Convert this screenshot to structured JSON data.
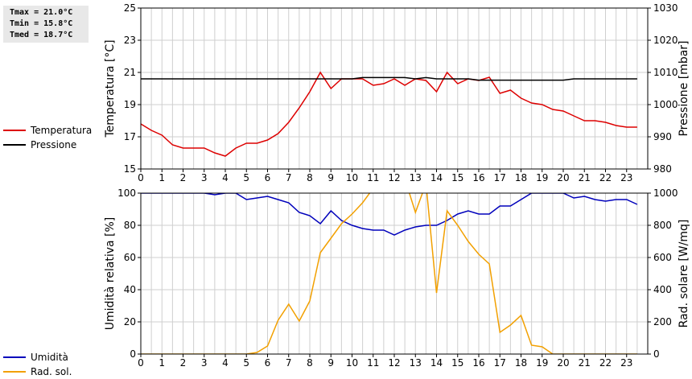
{
  "stats": [
    "Tmax = 21.0°C",
    "Tmin = 15.8°C",
    "Tmed = 18.7°C"
  ],
  "colors": {
    "temperature": "#dd0000",
    "pressure": "#000000",
    "humidity": "#0000bb",
    "solar": "#f2a000",
    "grid": "#cfcfcf"
  },
  "legend_top": [
    {
      "label": "Temperatura",
      "color": "#dd0000"
    },
    {
      "label": "Pressione",
      "color": "#000000"
    }
  ],
  "legend_bottom": [
    {
      "label": "Umidità",
      "color": "#0000bb"
    },
    {
      "label": "Rad. sol.",
      "color": "#f2a000"
    }
  ],
  "chart_data": [
    {
      "type": "line",
      "xlabel": "",
      "x_ticks": [
        "0",
        "1",
        "2",
        "3",
        "4",
        "5",
        "6",
        "7",
        "8",
        "9",
        "10",
        "11",
        "12",
        "13",
        "14",
        "15",
        "16",
        "17",
        "18",
        "19",
        "20",
        "21",
        "22",
        "23"
      ],
      "xlim": [
        0,
        24
      ],
      "ylabel": "Temperatura [°C]",
      "ylim": [
        15,
        25
      ],
      "y_ticks": [
        "15",
        "17",
        "19",
        "21",
        "23",
        "25"
      ],
      "y2label": "Pressione [mbar]",
      "y2lim": [
        980,
        1030
      ],
      "y2_ticks": [
        "980",
        "990",
        "1000",
        "1010",
        "1020",
        "1030"
      ],
      "grid": true,
      "legend": "left",
      "series": [
        {
          "name": "Temperatura",
          "axis": "left",
          "x": [
            0,
            0.5,
            1,
            1.5,
            2,
            2.5,
            3,
            3.5,
            4,
            4.5,
            5,
            5.5,
            6,
            6.5,
            7,
            7.5,
            8,
            8.5,
            9,
            9.5,
            10,
            10.5,
            11,
            11.5,
            12,
            12.5,
            13,
            13.5,
            14,
            14.5,
            15,
            15.5,
            16,
            16.5,
            17,
            17.5,
            18,
            18.5,
            19,
            19.5,
            20,
            20.5,
            21,
            21.5,
            22,
            22.5,
            23,
            23.5
          ],
          "y": [
            17.8,
            17.4,
            17.1,
            16.5,
            16.3,
            16.3,
            16.3,
            16.0,
            15.8,
            16.3,
            16.6,
            16.6,
            16.8,
            17.2,
            17.9,
            18.8,
            19.8,
            21.0,
            20.0,
            20.6,
            20.6,
            20.6,
            20.2,
            20.3,
            20.6,
            20.2,
            20.6,
            20.5,
            19.8,
            21.0,
            20.3,
            20.6,
            20.5,
            20.7,
            19.7,
            19.9,
            19.4,
            19.1,
            19.0,
            18.7,
            18.6,
            18.3,
            18.0,
            18.0,
            17.9,
            17.7,
            17.6,
            17.6
          ]
        },
        {
          "name": "Pressione",
          "axis": "right",
          "x": [
            0,
            10,
            10.5,
            12,
            12.5,
            13,
            13.5,
            14,
            14.5,
            15,
            15.5,
            16,
            17,
            20,
            20.5,
            23.5
          ],
          "y": [
            1008,
            1008,
            1008.4,
            1008.4,
            1008.4,
            1008,
            1008.4,
            1008,
            1008,
            1008,
            1008,
            1007.6,
            1007.6,
            1007.6,
            1008,
            1008
          ]
        }
      ]
    },
    {
      "type": "line",
      "xlabel": "",
      "x_ticks": [
        "0",
        "1",
        "2",
        "3",
        "4",
        "5",
        "6",
        "7",
        "8",
        "9",
        "10",
        "11",
        "12",
        "13",
        "14",
        "15",
        "16",
        "17",
        "18",
        "19",
        "20",
        "21",
        "22",
        "23"
      ],
      "xlim": [
        0,
        24
      ],
      "ylabel": "Umidità relativa [%]",
      "ylim": [
        0,
        100
      ],
      "y_ticks": [
        "0",
        "20",
        "40",
        "60",
        "80",
        "100"
      ],
      "y2label": "Rad. solare [W/mq]",
      "y2lim": [
        0,
        1000
      ],
      "y2_ticks": [
        "0",
        "200",
        "400",
        "600",
        "800",
        "1000"
      ],
      "grid": true,
      "legend": "left",
      "series": [
        {
          "name": "Umidità",
          "axis": "left",
          "x": [
            0,
            0.5,
            1,
            1.5,
            2,
            2.5,
            3,
            3.5,
            4,
            4.5,
            5,
            5.5,
            6,
            6.5,
            7,
            7.5,
            8,
            8.5,
            9,
            9.5,
            10,
            10.5,
            11,
            11.5,
            12,
            12.5,
            13,
            13.5,
            14,
            14.5,
            15,
            15.5,
            16,
            16.5,
            17,
            17.5,
            18,
            18.5,
            19,
            19.5,
            20,
            20.5,
            21,
            21.5,
            22,
            22.5,
            23,
            23.5
          ],
          "y": [
            100,
            100,
            100,
            100,
            100,
            100,
            100,
            99,
            100,
            100,
            96,
            97,
            98,
            96,
            94,
            88,
            86,
            81,
            89,
            83,
            80,
            78,
            77,
            77,
            74,
            77,
            79,
            80,
            80,
            83,
            87,
            89,
            87,
            87,
            92,
            92,
            96,
            100,
            100,
            100,
            100,
            97,
            98,
            96,
            95,
            96,
            96,
            93
          ]
        },
        {
          "name": "Rad. sol.",
          "axis": "right",
          "x": [
            0,
            0.5,
            1,
            1.5,
            2,
            2.5,
            3,
            3.5,
            4,
            4.5,
            5,
            5.5,
            6,
            6.5,
            7,
            7.5,
            8,
            8.5,
            9,
            9.5,
            10,
            10.5,
            11,
            11.5,
            12,
            12.5,
            13,
            13.5,
            14,
            14.5,
            15,
            15.5,
            16,
            16.5,
            17,
            17.5,
            18,
            18.5,
            19,
            19.5,
            20,
            20.5,
            21,
            21.5,
            22,
            22.5,
            23,
            23.5
          ],
          "y": [
            0,
            0,
            0,
            0,
            0,
            0,
            0,
            0,
            0,
            0,
            0,
            10,
            50,
            210,
            310,
            205,
            330,
            630,
            720,
            810,
            870,
            940,
            1030,
            1060,
            1120,
            1090,
            880,
            1060,
            380,
            890,
            800,
            700,
            620,
            560,
            135,
            180,
            240,
            55,
            45,
            0,
            0,
            0,
            0,
            0,
            0,
            0,
            0,
            0
          ]
        }
      ]
    }
  ]
}
